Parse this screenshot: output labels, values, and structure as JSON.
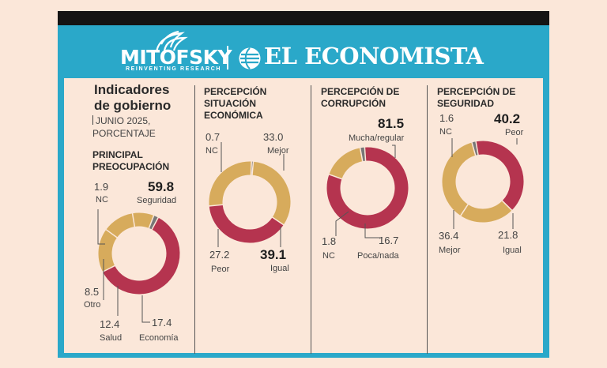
{
  "brand": {
    "mitofsky": "MITOFSKY",
    "mitofsky_tagline": "REINVENTING RESEARCH",
    "economista": "EL ECONOMISTA"
  },
  "header": {
    "title_line1": "Indicadores",
    "title_line2": "de gobierno",
    "subtitle_line1": "JUNIO 2025,",
    "subtitle_line2": "PORCENTAJE"
  },
  "colors": {
    "red": "#b5344f",
    "gold": "#d7ab5c",
    "gray": "#777777",
    "border": "#2aa8c9",
    "background": "#fbe7d9"
  },
  "chart_data": [
    {
      "type": "pie",
      "title_line1": "PRINCIPAL",
      "title_line2": "PREOCUPACIÓN",
      "slices": [
        {
          "label": "Seguridad",
          "value": 59.8,
          "value_text": "59.8",
          "color": "#b5344f"
        },
        {
          "label": "Economía",
          "value": 17.4,
          "value_text": "17.4",
          "color": "#d7ab5c"
        },
        {
          "label": "Salud",
          "value": 12.4,
          "value_text": "12.4",
          "color": "#d7ab5c"
        },
        {
          "label": "Otro",
          "value": 8.5,
          "value_text": "8.5",
          "color": "#d7ab5c"
        },
        {
          "label": "NC",
          "value": 1.9,
          "value_text": "1.9",
          "color": "#777777"
        }
      ]
    },
    {
      "type": "pie",
      "title_line1": "PERCEPCIÓN",
      "title_line2": "SITUACIÓN",
      "title_line3": "ECONÓMICA",
      "slices": [
        {
          "label": "Mejor",
          "value": 33.0,
          "value_text": "33.0",
          "color": "#d7ab5c"
        },
        {
          "label": "Igual",
          "value": 39.1,
          "value_text": "39.1",
          "color": "#b5344f"
        },
        {
          "label": "Peor",
          "value": 27.2,
          "value_text": "27.2",
          "color": "#d7ab5c"
        },
        {
          "label": "NC",
          "value": 0.7,
          "value_text": "0.7",
          "color": "#777777"
        }
      ]
    },
    {
      "type": "pie",
      "title_line1": "PERCEPCIÓN DE",
      "title_line2": "CORRUPCIÓN",
      "slices": [
        {
          "label": "Mucha/regular",
          "value": 81.5,
          "value_text": "81.5",
          "color": "#b5344f"
        },
        {
          "label": "Poca/nada",
          "value": 16.7,
          "value_text": "16.7",
          "color": "#d7ab5c"
        },
        {
          "label": "NC",
          "value": 1.8,
          "value_text": "1.8",
          "color": "#777777"
        }
      ]
    },
    {
      "type": "pie",
      "title_line1": "PERCEPCIÓN DE",
      "title_line2": "SEGURIDAD",
      "slices": [
        {
          "label": "Peor",
          "value": 40.2,
          "value_text": "40.2",
          "color": "#b5344f"
        },
        {
          "label": "Igual",
          "value": 21.8,
          "value_text": "21.8",
          "color": "#d7ab5c"
        },
        {
          "label": "Mejor",
          "value": 36.4,
          "value_text": "36.4",
          "color": "#d7ab5c"
        },
        {
          "label": "NC",
          "value": 1.6,
          "value_text": "1.6",
          "color": "#777777"
        }
      ]
    }
  ]
}
